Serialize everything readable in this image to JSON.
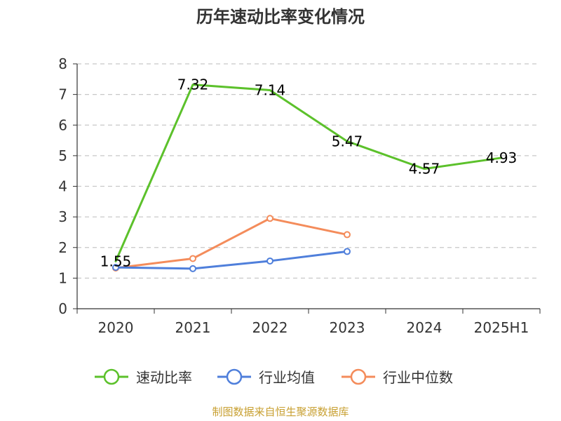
{
  "chart_data": {
    "type": "line",
    "title": "历年速动比率变化情况",
    "categories": [
      "2020",
      "2021",
      "2022",
      "2023",
      "2024",
      "2025H1"
    ],
    "y_ticks": [
      "0",
      "1",
      "2",
      "3",
      "4",
      "5",
      "6",
      "7",
      "8"
    ],
    "ylim": [
      0,
      8
    ],
    "grid": true,
    "legend_position": "bottom",
    "series": [
      {
        "name": "速动比率",
        "color": "#5cc12b",
        "values": [
          1.55,
          7.32,
          7.14,
          5.47,
          4.57,
          4.93
        ],
        "labels": [
          "1.55",
          "7.32",
          "7.14",
          "5.47",
          "4.57",
          "4.93"
        ],
        "markers": false
      },
      {
        "name": "行业均值",
        "color": "#4f7fdb",
        "values": [
          1.35,
          1.31,
          1.56,
          1.87,
          null,
          null
        ],
        "markers": true
      },
      {
        "name": "行业中位数",
        "color": "#f48c5b",
        "values": [
          1.33,
          1.64,
          2.95,
          2.42,
          null,
          null
        ],
        "markers": true
      }
    ],
    "source": "制图数据来自恒生聚源数据库"
  }
}
